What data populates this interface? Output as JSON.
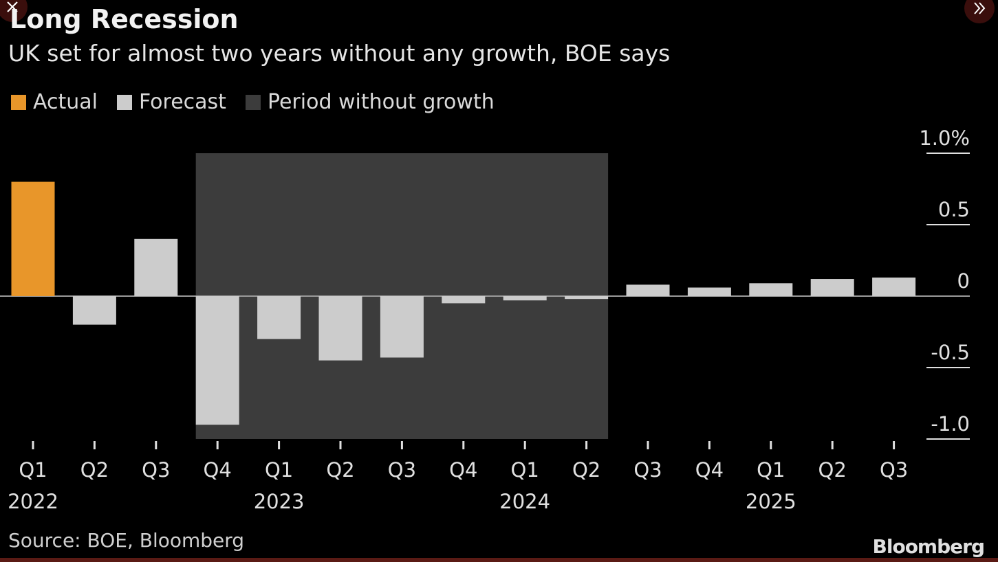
{
  "chart_data": {
    "type": "bar",
    "title": "Long Recession",
    "subtitle": "UK set for almost two years without any growth, BOE says",
    "legend": [
      {
        "label": "Actual",
        "color": "#e8962a"
      },
      {
        "label": "Forecast",
        "color": "#cccccc"
      },
      {
        "label": "Period without growth",
        "color": "#3c3c3c"
      }
    ],
    "categories": [
      "Q1",
      "Q2",
      "Q3",
      "Q4",
      "Q1",
      "Q2",
      "Q3",
      "Q4",
      "Q1",
      "Q2",
      "Q3",
      "Q4",
      "Q1",
      "Q2",
      "Q3"
    ],
    "year_labels": [
      {
        "index": 0,
        "label": "2022"
      },
      {
        "index": 4,
        "label": "2023"
      },
      {
        "index": 8,
        "label": "2024"
      },
      {
        "index": 12,
        "label": "2025"
      }
    ],
    "series": [
      {
        "name": "Actual",
        "values": [
          0.8,
          null,
          null,
          null,
          null,
          null,
          null,
          null,
          null,
          null,
          null,
          null,
          null,
          null,
          null
        ]
      },
      {
        "name": "Forecast",
        "values": [
          null,
          -0.2,
          0.4,
          -0.9,
          -0.3,
          -0.45,
          -0.43,
          -0.05,
          -0.03,
          -0.02,
          0.08,
          0.06,
          0.09,
          0.12,
          0.13
        ]
      }
    ],
    "shaded_period": {
      "label": "Period without growth",
      "from_index": 3,
      "to_index": 9
    },
    "yticks": [
      {
        "value": 1.0,
        "label": "1.0%"
      },
      {
        "value": 0.5,
        "label": "0.5"
      },
      {
        "value": 0,
        "label": "0"
      },
      {
        "value": -0.5,
        "label": "-0.5"
      },
      {
        "value": -1.0,
        "label": "-1.0"
      }
    ],
    "ylim": [
      -1.0,
      1.0
    ],
    "yaxis_position": "right",
    "source": "Source: BOE, Bloomberg",
    "brand": "Bloomberg"
  },
  "controls": {
    "close_icon": "close-icon",
    "next_icon": "chevron-double-right-icon"
  }
}
